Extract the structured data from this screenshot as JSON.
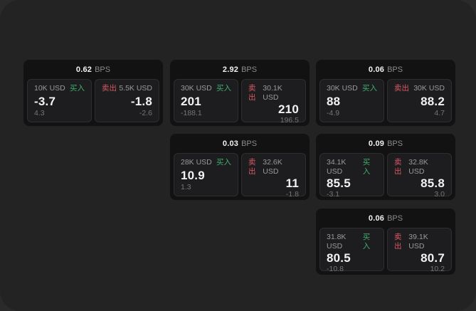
{
  "theme": {
    "backdrop": "#2a2a2a",
    "window_bg": "#232324",
    "card_bg": "#121213",
    "panel_bg": "#1d1d1f",
    "panel_border": "#2e2e30",
    "text_primary": "#f2f2f2",
    "text_muted": "#9a9a9a",
    "text_dim": "#757575",
    "text_unit": "#8a8a8a",
    "buy_color": "#3fae6e",
    "sell_color": "#d95865"
  },
  "labels": {
    "bps_unit": "BPS",
    "buy": "买入",
    "sell": "卖出"
  },
  "cards": [
    {
      "bps": "0.62",
      "col": 1,
      "row": 1,
      "buy": {
        "amount": "10K USD",
        "value": "-3.7",
        "sub": "4.3"
      },
      "sell": {
        "amount": "5.5K USD",
        "value": "-1.8",
        "sub": "-2.6"
      }
    },
    {
      "bps": "2.92",
      "col": 2,
      "row": 1,
      "buy": {
        "amount": "30K USD",
        "value": "201",
        "sub": "-188.1"
      },
      "sell": {
        "amount": "30.1K USD",
        "value": "210",
        "sub": "196.5"
      }
    },
    {
      "bps": "0.06",
      "col": 3,
      "row": 1,
      "buy": {
        "amount": "30K USD",
        "value": "88",
        "sub": "-4.9"
      },
      "sell": {
        "amount": "30K USD",
        "value": "88.2",
        "sub": "4.7"
      }
    },
    {
      "bps": "0.03",
      "col": 2,
      "row": 2,
      "buy": {
        "amount": "28K USD",
        "value": "10.9",
        "sub": "1.3"
      },
      "sell": {
        "amount": "32.6K USD",
        "value": "11",
        "sub": "-1.8"
      }
    },
    {
      "bps": "0.09",
      "col": 3,
      "row": 2,
      "buy": {
        "amount": "34.1K USD",
        "value": "85.5",
        "sub": "-3.1"
      },
      "sell": {
        "amount": "32.8K USD",
        "value": "85.8",
        "sub": "3.0"
      }
    },
    {
      "bps": "0.06",
      "col": 3,
      "row": 3,
      "buy": {
        "amount": "31.8K USD",
        "value": "80.5",
        "sub": "-10.8"
      },
      "sell": {
        "amount": "39.1K USD",
        "value": "80.7",
        "sub": "10.2"
      }
    }
  ]
}
